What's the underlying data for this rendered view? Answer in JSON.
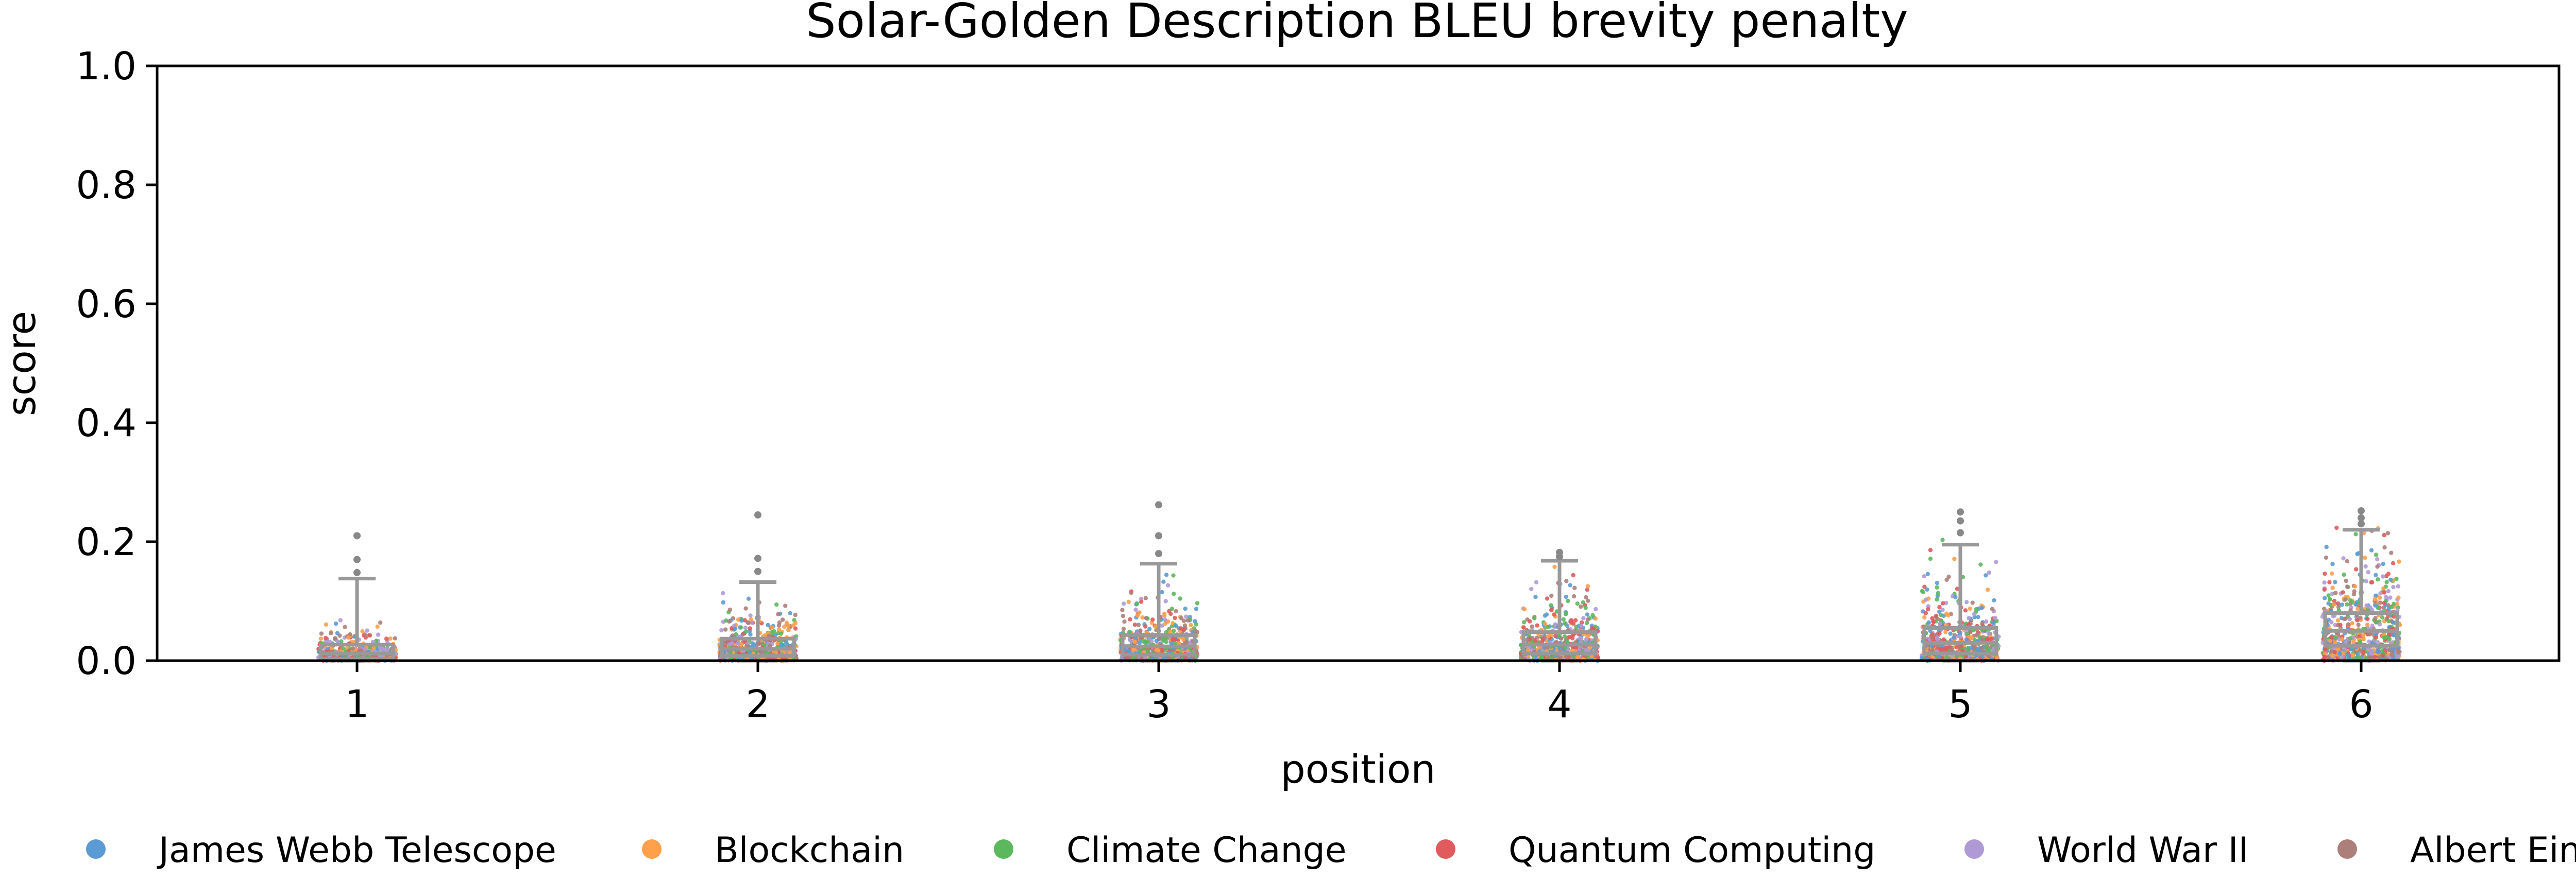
{
  "chart_data": {
    "type": "box-strip",
    "title": "Solar-Golden Description BLEU brevity penalty",
    "xlabel": "position",
    "ylabel": "score",
    "ylim": [
      0,
      1
    ],
    "yticks": [
      0.0,
      0.2,
      0.4,
      0.6,
      0.8,
      1.0
    ],
    "ytick_labels": [
      "0.0",
      "0.2",
      "0.4",
      "0.6",
      "0.8",
      "1.0"
    ],
    "categories": [
      "1",
      "2",
      "3",
      "4",
      "5",
      "6"
    ],
    "grid": false,
    "legend_position": "bottom",
    "box_color": "#999999",
    "boxes": [
      {
        "position": "1",
        "q1": 0.003,
        "median": 0.012,
        "q3": 0.027,
        "whisker_low": 0.0,
        "whisker_high": 0.138,
        "outliers": [
          0.148,
          0.17,
          0.21
        ]
      },
      {
        "position": "2",
        "q1": 0.008,
        "median": 0.02,
        "q3": 0.037,
        "whisker_low": 0.0,
        "whisker_high": 0.132,
        "outliers": [
          0.15,
          0.172,
          0.245
        ]
      },
      {
        "position": "3",
        "q1": 0.01,
        "median": 0.024,
        "q3": 0.043,
        "whisker_low": 0.0,
        "whisker_high": 0.163,
        "outliers": [
          0.18,
          0.21,
          0.262
        ]
      },
      {
        "position": "4",
        "q1": 0.012,
        "median": 0.027,
        "q3": 0.048,
        "whisker_low": 0.0,
        "whisker_high": 0.168,
        "outliers": [
          0.175,
          0.182
        ]
      },
      {
        "position": "5",
        "q1": 0.012,
        "median": 0.03,
        "q3": 0.055,
        "whisker_low": 0.0,
        "whisker_high": 0.195,
        "outliers": [
          0.215,
          0.235,
          0.25
        ]
      },
      {
        "position": "6",
        "q1": 0.025,
        "median": 0.05,
        "q3": 0.08,
        "whisker_low": 0.0,
        "whisker_high": 0.22,
        "outliers": [
          0.23,
          0.24,
          0.252
        ]
      }
    ],
    "series": [
      {
        "name": "James Webb Telescope",
        "color": "#5a9bd4"
      },
      {
        "name": "Blockchain",
        "color": "#ffa04a"
      },
      {
        "name": "Climate Change",
        "color": "#5cb85c"
      },
      {
        "name": "Quantum Computing",
        "color": "#e05a5e"
      },
      {
        "name": "World War II",
        "color": "#b09ad6"
      },
      {
        "name": "Albert Einstein",
        "color": "#ad7f7a"
      }
    ]
  }
}
